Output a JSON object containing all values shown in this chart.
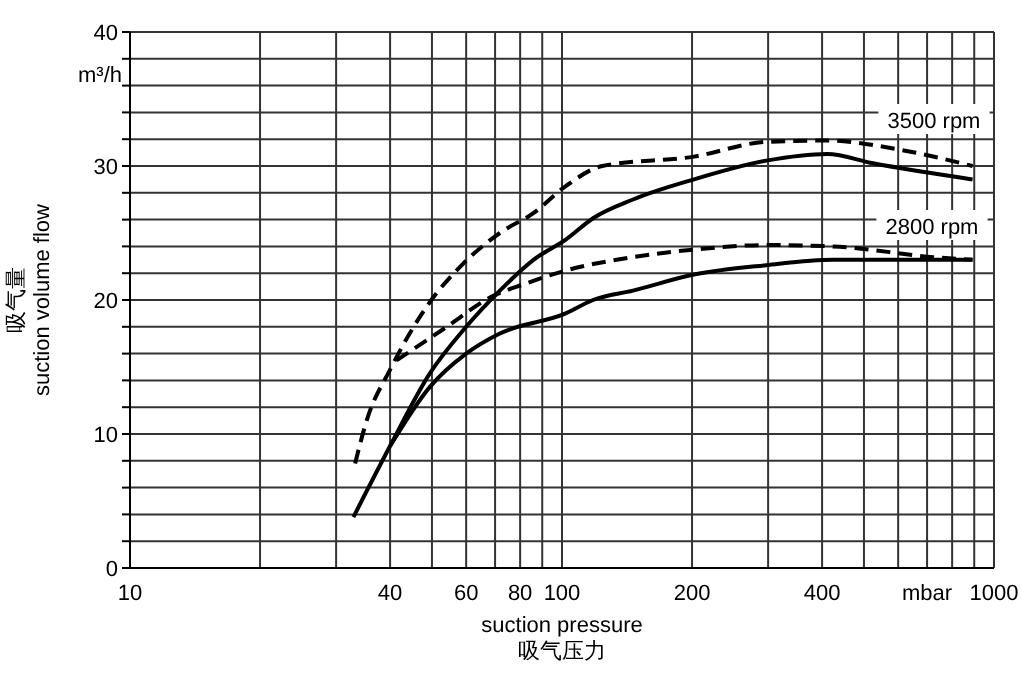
{
  "chart_data": {
    "type": "line",
    "xlabel": "suction pressure\n吸气压力",
    "ylabel": "吸气量\nsuction volume flow",
    "log": "x",
    "xlim": [
      10,
      1000
    ],
    "ylim": [
      0,
      40
    ],
    "xticks": [
      10,
      {
        "value": 20,
        "label": null
      },
      {
        "value": 30,
        "label": null
      },
      40,
      {
        "value": 50,
        "label": null
      },
      60,
      {
        "value": 70,
        "label": null
      },
      80,
      {
        "value": 90,
        "label": null
      },
      100,
      200,
      {
        "value": 300,
        "label": null
      },
      400,
      {
        "value": 500,
        "label": null
      },
      {
        "value": 600,
        "label": null
      },
      {
        "value": 700,
        "label": "mbar"
      },
      {
        "value": 800,
        "label": null
      },
      {
        "value": 900,
        "label": null
      },
      1000
    ],
    "yticks": [
      0,
      {
        "value": 2,
        "label": null
      },
      {
        "value": 4,
        "label": null
      },
      {
        "value": 6,
        "label": null
      },
      {
        "value": 8,
        "label": null
      },
      10,
      {
        "value": 12,
        "label": null
      },
      {
        "value": 14,
        "label": null
      },
      {
        "value": 16,
        "label": null
      },
      {
        "value": 18,
        "label": null
      },
      20,
      {
        "value": 22,
        "label": null
      },
      {
        "value": 24,
        "label": null
      },
      {
        "value": 26,
        "label": null
      },
      {
        "value": 28,
        "label": null
      },
      30,
      {
        "value": 32,
        "label": null
      },
      {
        "value": 34,
        "label": null
      },
      {
        "value": 36,
        "label": null
      },
      {
        "value": 38,
        "label": null
      },
      40
    ],
    "grid": true,
    "marker": "none",
    "annotations": [
      "m³/h",
      "3500 rpm",
      "2800 rpm"
    ],
    "series": [
      {
        "color": "#000000",
        "line_style": "dashed",
        "x": [
          33.2,
          35.3,
          40,
          48.6,
          59,
          71.8,
          86,
          102,
          124,
          202,
          297,
          411,
          609,
          892
        ],
        "values": [
          7.8,
          11,
          14.8,
          19.5,
          22.7,
          25,
          26.5,
          28.5,
          30,
          30.7,
          31.8,
          31.9,
          31.2,
          30
        ]
      },
      {
        "color": "#000000",
        "line_style": "solid",
        "x": [
          32.9,
          40,
          49.4,
          60,
          71.8,
          85.9,
          102,
          118,
          146,
          202,
          297,
          411,
          525,
          892
        ],
        "values": [
          3.8,
          9.1,
          14.5,
          18,
          20.7,
          23,
          24.5,
          26.1,
          27.5,
          29,
          30.4,
          30.9,
          30.2,
          29
        ]
      },
      {
        "color": "#000000",
        "line_style": "dashed",
        "x": [
          41.4,
          53,
          69.2,
          82,
          102,
          146,
          208,
          297,
          424,
          723,
          892
        ],
        "values": [
          15.5,
          17.8,
          20.3,
          21.2,
          22.2,
          23.2,
          23.8,
          24.1,
          24,
          23.2,
          23
        ]
      },
      {
        "color": "#000000",
        "line_style": "solid",
        "x": [
          40,
          49.4,
          60,
          71.8,
          102,
          118,
          146,
          202,
          297,
          424,
          892
        ],
        "values": [
          9.1,
          13.5,
          16,
          17.5,
          19,
          20,
          20.7,
          21.9,
          22.6,
          23,
          23
        ]
      }
    ]
  }
}
